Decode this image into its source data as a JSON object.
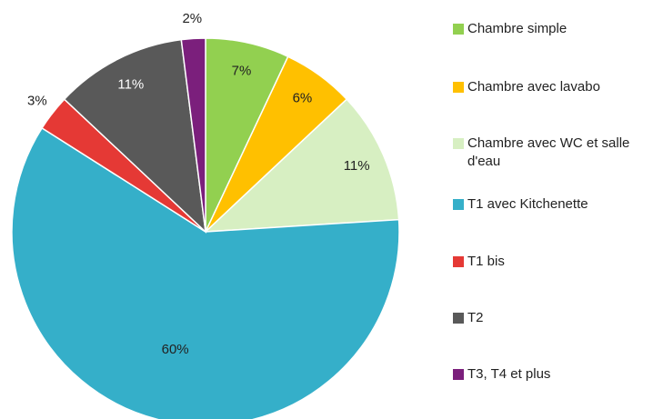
{
  "chart_data": {
    "type": "pie",
    "categories": [
      "Chambre simple",
      "Chambre avec lavabo",
      "Chambre avec WC et salle d'eau",
      "T1 avec Kitchenette",
      "T1 bis",
      "T2",
      "T3, T4 et plus"
    ],
    "values": [
      7,
      6,
      11,
      60,
      3,
      11,
      2
    ],
    "value_labels": [
      "7%",
      "6%",
      "11%",
      "60%",
      "3%",
      "11%",
      "2%"
    ],
    "colors": [
      "#92d050",
      "#ffc000",
      "#d7efc2",
      "#35afc9",
      "#e53935",
      "#595959",
      "#7b1f7c"
    ],
    "legend": "right"
  }
}
